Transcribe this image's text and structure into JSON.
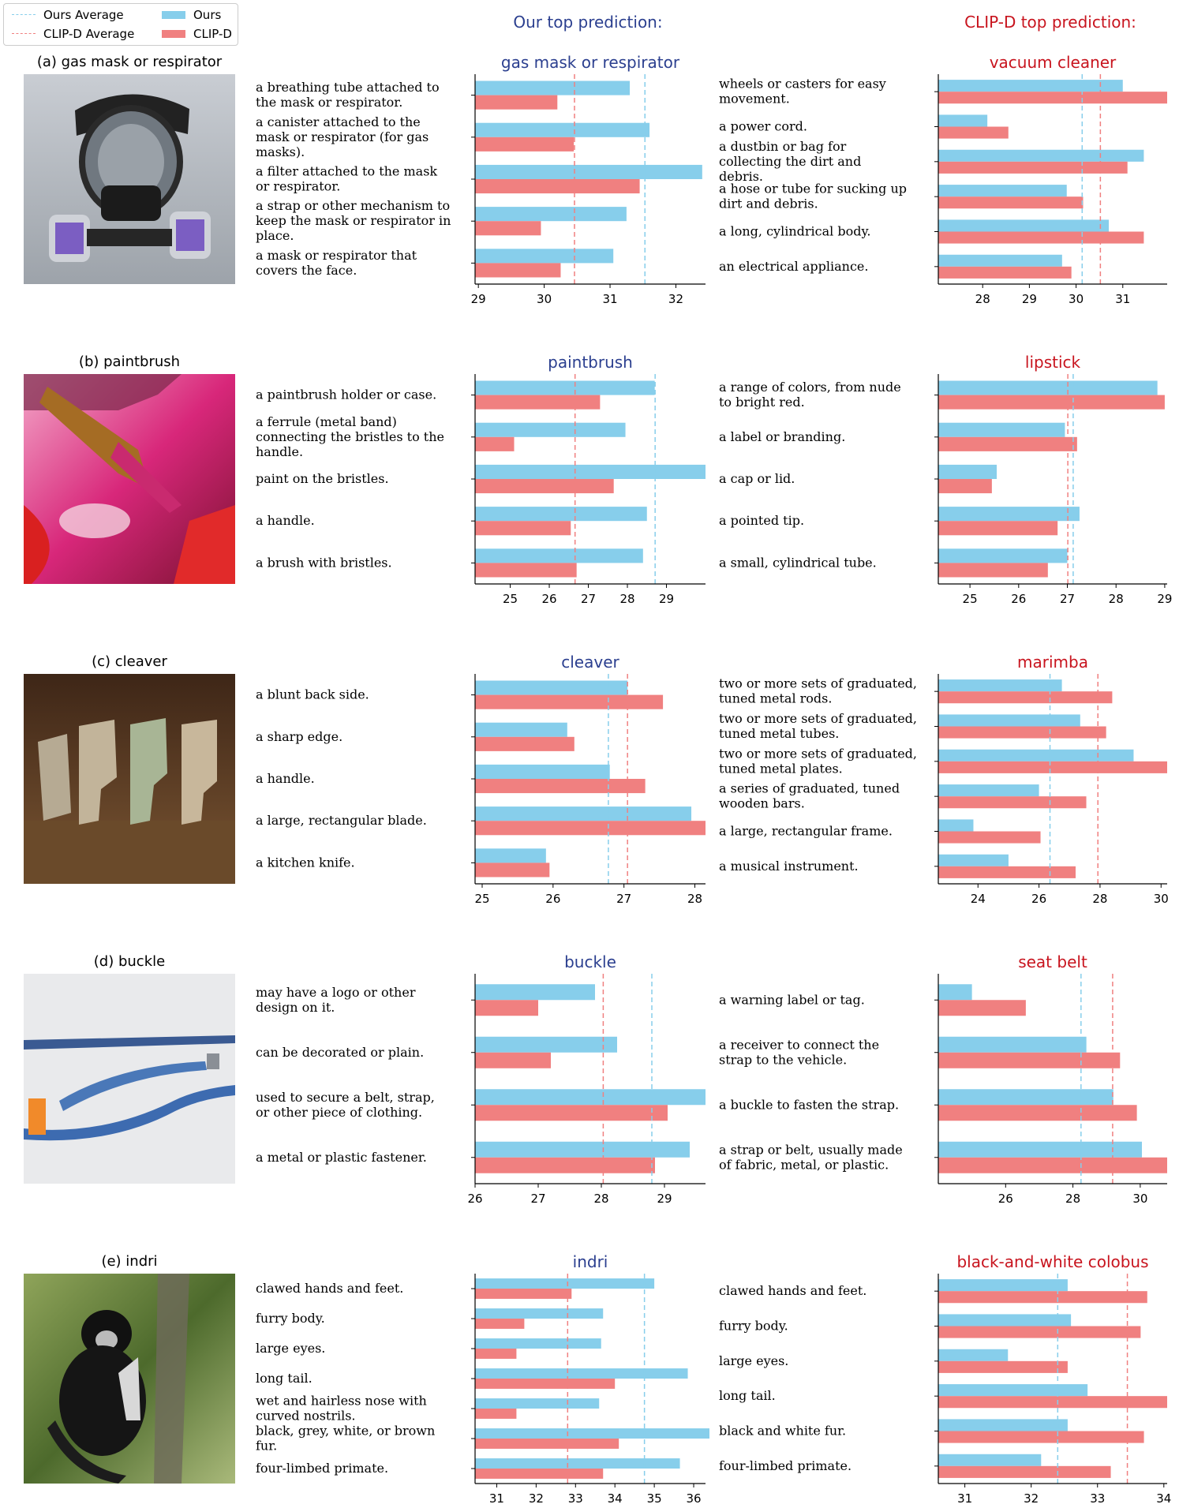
{
  "legend": [
    {
      "label": "Ours Average",
      "kind": "dash",
      "color": "#87CEEB"
    },
    {
      "label": "Ours",
      "kind": "bar",
      "color": "#87CEEB"
    },
    {
      "label": "CLIP-D Average",
      "kind": "dash",
      "color": "#F08080"
    },
    {
      "label": "CLIP-D",
      "kind": "bar",
      "color": "#F08080"
    }
  ],
  "headers": {
    "ours": "Our top prediction:",
    "clip": "CLIP-D top prediction:"
  },
  "colors": {
    "ours": "#87CEEB",
    "clip": "#F08080",
    "ours_title": "#2B3F8F",
    "clip_title": "#C8141E"
  },
  "chart_data": [
    {
      "panel": "(a) gas mask or respirator",
      "type": "bar",
      "left": {
        "title": "gas mask or respirator",
        "categories": [
          "a breathing tube attached to the mask or respirator.",
          "a canister attached to the mask or respirator (for gas masks).",
          "a filter attached to the mask or respirator.",
          "a strap or other mechanism to keep the mask or respirator in place.",
          "a mask or respirator that covers the face."
        ],
        "ours": [
          31.3,
          31.6,
          32.4,
          31.25,
          31.05
        ],
        "clip": [
          30.2,
          30.45,
          31.45,
          29.95,
          30.25
        ],
        "ours_avg": 31.53,
        "clip_avg": 30.46,
        "xlim": [
          28.95,
          32.45
        ],
        "xticks": [
          29,
          30,
          31,
          32
        ]
      },
      "right": {
        "title": "vacuum cleaner",
        "categories": [
          "wheels or casters for easy movement.",
          "a power cord.",
          "a dustbin or bag for collecting the dirt and debris.",
          "a hose or tube for sucking up dirt and debris.",
          "a long, cylindrical body.",
          "an electrical appliance."
        ],
        "ours": [
          31.0,
          28.1,
          31.45,
          29.8,
          30.7,
          29.7
        ],
        "clip": [
          31.95,
          28.55,
          31.1,
          30.15,
          31.45,
          29.9
        ],
        "ours_avg": 30.13,
        "clip_avg": 30.52,
        "xlim": [
          27.05,
          31.95
        ],
        "xticks": [
          28,
          29,
          30,
          31
        ]
      }
    },
    {
      "panel": "(b) paintbrush",
      "type": "bar",
      "left": {
        "title": "paintbrush",
        "categories": [
          "a paintbrush holder or case.",
          "a ferrule (metal band) connecting the bristles to the handle.",
          "paint on the bristles.",
          "a handle.",
          "a brush with bristles."
        ],
        "ours": [
          28.7,
          27.95,
          30.0,
          28.5,
          28.4
        ],
        "clip": [
          27.3,
          25.1,
          27.65,
          26.55,
          26.7
        ],
        "ours_avg": 28.71,
        "clip_avg": 26.66,
        "xlim": [
          24.1,
          30.0
        ],
        "xticks": [
          25,
          26,
          27,
          28,
          29
        ]
      },
      "right": {
        "title": "lipstick",
        "categories": [
          "a range of colors, from nude to bright red.",
          "a label or branding.",
          "a cap or lid.",
          "a pointed tip.",
          "a small, cylindrical tube."
        ],
        "ours": [
          28.85,
          26.95,
          25.55,
          27.25,
          27.0
        ],
        "clip": [
          29.0,
          27.2,
          25.45,
          26.8,
          26.6
        ],
        "ours_avg": 27.12,
        "clip_avg": 27.01,
        "xlim": [
          24.35,
          29.05
        ],
        "xticks": [
          25,
          26,
          27,
          28,
          29
        ]
      }
    },
    {
      "panel": "(c) cleaver",
      "type": "bar",
      "left": {
        "title": "cleaver",
        "categories": [
          "a blunt back side.",
          "a sharp edge.",
          "a handle.",
          "a large, rectangular blade.",
          "a kitchen knife."
        ],
        "ours": [
          27.05,
          26.2,
          26.8,
          27.95,
          25.9
        ],
        "clip": [
          27.55,
          26.3,
          27.3,
          28.15,
          25.95
        ],
        "ours_avg": 26.78,
        "clip_avg": 27.05,
        "xlim": [
          24.9,
          28.15
        ],
        "xticks": [
          25,
          26,
          27,
          28
        ]
      },
      "right": {
        "title": "marimba",
        "categories": [
          "two or more sets of graduated, tuned metal rods.",
          "two or more sets of graduated, tuned metal tubes.",
          "two or more sets of graduated, tuned metal plates.",
          "a series of graduated, tuned wooden bars.",
          "a large, rectangular frame.",
          "a musical instrument."
        ],
        "ours": [
          26.75,
          27.35,
          29.1,
          26.0,
          23.85,
          25.0
        ],
        "clip": [
          28.4,
          28.2,
          30.2,
          27.55,
          26.05,
          27.2
        ],
        "ours_avg": 26.36,
        "clip_avg": 27.93,
        "xlim": [
          22.7,
          30.2
        ],
        "xticks": [
          24,
          26,
          28,
          30
        ]
      }
    },
    {
      "panel": "(d) buckle",
      "type": "bar",
      "left": {
        "title": "buckle",
        "categories": [
          "may have a logo or other design on it.",
          "can be decorated or plain.",
          "used to secure a belt, strap, or other piece of clothing.",
          "a metal or plastic fastener."
        ],
        "ours": [
          27.9,
          28.25,
          29.65,
          29.4
        ],
        "clip": [
          27.0,
          27.2,
          29.05,
          28.85
        ],
        "ours_avg": 28.8,
        "clip_avg": 28.03,
        "xlim": [
          26.0,
          29.65
        ],
        "xticks": [
          26,
          27,
          28,
          29
        ]
      },
      "right": {
        "title": "seat belt",
        "categories": [
          "a warning label or tag.",
          "a receiver to connect the strap to the vehicle.",
          "a buckle to fasten the strap.",
          "a strap or belt, usually made of fabric, metal, or plastic."
        ],
        "ours": [
          25.0,
          28.4,
          29.2,
          30.05
        ],
        "clip": [
          26.6,
          29.4,
          29.9,
          30.8
        ],
        "ours_avg": 28.24,
        "clip_avg": 29.18,
        "xlim": [
          24.0,
          30.8
        ],
        "xticks": [
          26,
          28,
          30
        ]
      }
    },
    {
      "panel": "(e) indri",
      "type": "bar",
      "left": {
        "title": "indri",
        "categories": [
          "clawed hands and feet.",
          "furry body.",
          "large eyes.",
          "long tail.",
          "wet and hairless nose with curved nostrils.",
          "black, grey, white, or brown fur.",
          "four-limbed primate."
        ],
        "ours": [
          35.0,
          33.7,
          33.65,
          35.85,
          33.6,
          36.4,
          35.65
        ],
        "clip": [
          32.9,
          31.7,
          31.5,
          34.0,
          31.5,
          34.1,
          33.7
        ],
        "ours_avg": 34.75,
        "clip_avg": 32.8,
        "xlim": [
          30.45,
          36.3
        ],
        "xticks": [
          31,
          32,
          33,
          34,
          35,
          36
        ]
      },
      "right": {
        "title": "black-and-white colobus",
        "categories": [
          "clawed hands and feet.",
          "furry body.",
          "large eyes.",
          "long tail.",
          "black and white fur.",
          "four-limbed primate."
        ],
        "ours": [
          32.55,
          32.6,
          31.65,
          32.85,
          32.55,
          32.15
        ],
        "clip": [
          33.75,
          33.65,
          32.55,
          34.05,
          33.7,
          33.2
        ],
        "ours_avg": 32.4,
        "clip_avg": 33.45,
        "xlim": [
          30.6,
          34.05
        ],
        "xticks": [
          31,
          32,
          33,
          34
        ]
      }
    }
  ]
}
